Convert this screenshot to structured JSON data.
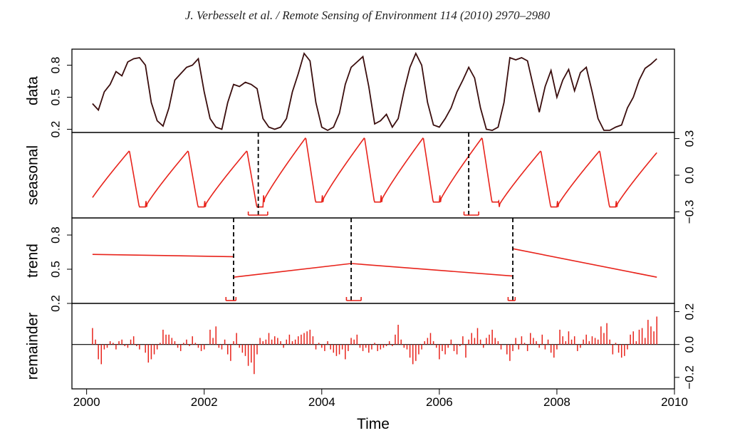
{
  "header": {
    "citation": "J. Verbesselt et al. / Remote Sensing of Environment 114 (2010) 2970–2980"
  },
  "chart_data": {
    "type": "line",
    "xlabel": "Time",
    "xlim": [
      1999.75,
      2010.0
    ],
    "x_ticks": [
      2000,
      2002,
      2004,
      2006,
      2008,
      2010
    ],
    "x_tick_labels": [
      "2000",
      "2002",
      "2004",
      "2006",
      "2008",
      "2010"
    ],
    "panels": [
      {
        "name": "data",
        "ylabel": "data",
        "axis_side": "left",
        "ylim": [
          0.17,
          0.95
        ],
        "y_ticks": [
          0.2,
          0.5,
          0.8
        ],
        "y_tick_labels": [
          "0.2",
          "0.5",
          "0.8"
        ],
        "line_color": "#3a0d0d",
        "series": {
          "x": [
            2000.1,
            2000.2,
            2000.3,
            2000.4,
            2000.5,
            2000.6,
            2000.7,
            2000.8,
            2000.9,
            2001.0,
            2001.1,
            2001.2,
            2001.3,
            2001.4,
            2001.5,
            2001.6,
            2001.7,
            2001.8,
            2001.9,
            2002.0,
            2002.1,
            2002.2,
            2002.3,
            2002.4,
            2002.5,
            2002.6,
            2002.7,
            2002.8,
            2002.9,
            2003.0,
            2003.1,
            2003.2,
            2003.3,
            2003.4,
            2003.5,
            2003.6,
            2003.7,
            2003.8,
            2003.9,
            2004.0,
            2004.1,
            2004.2,
            2004.3,
            2004.4,
            2004.5,
            2004.6,
            2004.7,
            2004.8,
            2004.9,
            2005.0,
            2005.1,
            2005.2,
            2005.3,
            2005.4,
            2005.5,
            2005.6,
            2005.7,
            2005.8,
            2005.9,
            2006.0,
            2006.1,
            2006.2,
            2006.3,
            2006.4,
            2006.5,
            2006.6,
            2006.7,
            2006.8,
            2006.9,
            2007.0,
            2007.1,
            2007.2,
            2007.3,
            2007.4,
            2007.5,
            2007.6,
            2007.7,
            2007.8,
            2007.9,
            2008.0,
            2008.1,
            2008.2,
            2008.3,
            2008.4,
            2008.5,
            2008.6,
            2008.7,
            2008.8,
            2008.9,
            2009.0,
            2009.1,
            2009.2,
            2009.3,
            2009.4,
            2009.5,
            2009.6,
            2009.7
          ],
          "y": [
            0.44,
            0.38,
            0.55,
            0.62,
            0.74,
            0.7,
            0.83,
            0.86,
            0.87,
            0.8,
            0.45,
            0.28,
            0.23,
            0.4,
            0.66,
            0.72,
            0.78,
            0.8,
            0.86,
            0.55,
            0.3,
            0.22,
            0.2,
            0.45,
            0.62,
            0.6,
            0.64,
            0.62,
            0.58,
            0.3,
            0.22,
            0.2,
            0.22,
            0.3,
            0.55,
            0.72,
            0.91,
            0.84,
            0.45,
            0.22,
            0.19,
            0.22,
            0.35,
            0.62,
            0.78,
            0.83,
            0.88,
            0.6,
            0.25,
            0.28,
            0.34,
            0.22,
            0.3,
            0.56,
            0.78,
            0.91,
            0.8,
            0.45,
            0.24,
            0.22,
            0.3,
            0.4,
            0.55,
            0.66,
            0.78,
            0.68,
            0.4,
            0.2,
            0.19,
            0.22,
            0.45,
            0.87,
            0.85,
            0.87,
            0.84,
            0.6,
            0.36,
            0.6,
            0.75,
            0.5,
            0.66,
            0.76,
            0.56,
            0.73,
            0.78,
            0.55,
            0.3,
            0.19,
            0.19,
            0.22,
            0.24,
            0.4,
            0.5,
            0.66,
            0.77,
            0.81,
            0.86
          ]
        }
      },
      {
        "name": "seasonal",
        "ylabel": "seasonal",
        "axis_side": "right",
        "ylim": [
          -0.35,
          0.35
        ],
        "y_ticks": [
          -0.3,
          0.0,
          0.3
        ],
        "y_tick_labels": [
          "−0.3",
          "0.0",
          "0.3"
        ],
        "line_color": "#e8231b",
        "breakpoints": [
          2002.92,
          2006.5
        ],
        "confidence_intervals": [
          [
            2002.75,
            2003.08
          ],
          [
            2006.42,
            2006.67
          ]
        ]
      },
      {
        "name": "trend",
        "ylabel": "trend",
        "axis_side": "left",
        "ylim": [
          0.2,
          0.95
        ],
        "y_ticks": [
          0.2,
          0.5,
          0.8
        ],
        "y_tick_labels": [
          "0.2",
          "0.5",
          "0.8"
        ],
        "line_color": "#e8231b",
        "breakpoints": [
          2002.5,
          2004.5,
          2007.25
        ],
        "confidence_intervals": [
          [
            2002.37,
            2002.54
          ],
          [
            2004.42,
            2004.67
          ],
          [
            2007.17,
            2007.29
          ]
        ],
        "segments": [
          {
            "x": [
              2000.1,
              2002.5
            ],
            "y": [
              0.63,
              0.61
            ]
          },
          {
            "x": [
              2002.5,
              2004.5
            ],
            "y": [
              0.43,
              0.55
            ]
          },
          {
            "x": [
              2004.5,
              2007.25
            ],
            "y": [
              0.55,
              0.44
            ]
          },
          {
            "x": [
              2007.25,
              2009.7
            ],
            "y": [
              0.68,
              0.43
            ]
          }
        ]
      },
      {
        "name": "remainder",
        "ylabel": "remainder",
        "axis_side": "right",
        "ylim": [
          -0.27,
          0.25
        ],
        "y_ticks": [
          -0.2,
          0.0,
          0.2
        ],
        "y_tick_labels": [
          "−0.2",
          "0.0",
          "0.2"
        ],
        "line_color": "#e8231b",
        "series": {
          "x": [
            2000.1,
            2000.15,
            2000.2,
            2000.25,
            2000.3,
            2000.35,
            2000.4,
            2000.45,
            2000.5,
            2000.55,
            2000.6,
            2000.65,
            2000.7,
            2000.75,
            2000.8,
            2000.85,
            2000.9,
            2000.95,
            2001.0,
            2001.05,
            2001.1,
            2001.15,
            2001.2,
            2001.25,
            2001.3,
            2001.35,
            2001.4,
            2001.45,
            2001.5,
            2001.55,
            2001.6,
            2001.65,
            2001.7,
            2001.75,
            2001.8,
            2001.85,
            2001.9,
            2001.95,
            2002.0,
            2002.05,
            2002.1,
            2002.15,
            2002.2,
            2002.25,
            2002.3,
            2002.35,
            2002.4,
            2002.45,
            2002.5,
            2002.55,
            2002.6,
            2002.65,
            2002.7,
            2002.75,
            2002.8,
            2002.85,
            2002.9,
            2002.95,
            2003.0,
            2003.05,
            2003.1,
            2003.15,
            2003.2,
            2003.25,
            2003.3,
            2003.35,
            2003.4,
            2003.45,
            2003.5,
            2003.55,
            2003.6,
            2003.65,
            2003.7,
            2003.75,
            2003.8,
            2003.85,
            2003.9,
            2003.95,
            2004.0,
            2004.05,
            2004.1,
            2004.15,
            2004.2,
            2004.25,
            2004.3,
            2004.35,
            2004.4,
            2004.45,
            2004.5,
            2004.55,
            2004.6,
            2004.65,
            2004.7,
            2004.75,
            2004.8,
            2004.85,
            2004.9,
            2004.95,
            2005.0,
            2005.05,
            2005.1,
            2005.15,
            2005.2,
            2005.25,
            2005.3,
            2005.35,
            2005.4,
            2005.45,
            2005.5,
            2005.55,
            2005.6,
            2005.65,
            2005.7,
            2005.75,
            2005.8,
            2005.85,
            2005.9,
            2005.95,
            2006.0,
            2006.05,
            2006.1,
            2006.15,
            2006.2,
            2006.25,
            2006.3,
            2006.35,
            2006.4,
            2006.45,
            2006.5,
            2006.55,
            2006.6,
            2006.65,
            2006.7,
            2006.75,
            2006.8,
            2006.85,
            2006.9,
            2006.95,
            2007.0,
            2007.05,
            2007.1,
            2007.15,
            2007.2,
            2007.25,
            2007.3,
            2007.35,
            2007.4,
            2007.45,
            2007.5,
            2007.55,
            2007.6,
            2007.65,
            2007.7,
            2007.75,
            2007.8,
            2007.85,
            2007.9,
            2007.95,
            2008.0,
            2008.05,
            2008.1,
            2008.15,
            2008.2,
            2008.25,
            2008.3,
            2008.35,
            2008.4,
            2008.45,
            2008.5,
            2008.55,
            2008.6,
            2008.65,
            2008.7,
            2008.75,
            2008.8,
            2008.85,
            2008.9,
            2008.95,
            2009.0,
            2009.05,
            2009.1,
            2009.15,
            2009.2,
            2009.25,
            2009.3,
            2009.35,
            2009.4,
            2009.45,
            2009.5,
            2009.55,
            2009.6,
            2009.65,
            2009.7
          ],
          "y": [
            0.1,
            0.03,
            -0.09,
            -0.12,
            -0.03,
            -0.02,
            0.02,
            0.01,
            -0.03,
            0.02,
            0.03,
            -0.01,
            -0.02,
            0.03,
            0.05,
            -0.01,
            -0.03,
            0.0,
            -0.05,
            -0.11,
            -0.09,
            -0.06,
            -0.03,
            0.01,
            0.09,
            0.06,
            0.06,
            0.04,
            0.02,
            -0.02,
            -0.04,
            0.01,
            0.03,
            -0.01,
            0.05,
            0.01,
            -0.02,
            -0.04,
            -0.03,
            0.0,
            0.09,
            0.04,
            0.11,
            -0.02,
            -0.03,
            0.03,
            -0.06,
            -0.1,
            0.02,
            0.07,
            -0.02,
            -0.05,
            -0.07,
            -0.13,
            -0.11,
            -0.18,
            -0.06,
            0.04,
            0.02,
            0.03,
            0.07,
            0.03,
            0.05,
            0.04,
            0.02,
            -0.02,
            0.03,
            0.06,
            0.02,
            0.03,
            0.05,
            0.06,
            0.07,
            0.08,
            0.09,
            0.05,
            -0.03,
            0.01,
            -0.02,
            -0.04,
            0.02,
            -0.03,
            -0.05,
            -0.07,
            -0.06,
            -0.03,
            -0.09,
            -0.04,
            0.04,
            0.03,
            0.06,
            -0.02,
            -0.04,
            -0.02,
            -0.05,
            -0.03,
            0.01,
            -0.04,
            -0.03,
            -0.02,
            -0.01,
            0.02,
            -0.01,
            0.06,
            0.12,
            0.03,
            -0.02,
            -0.03,
            -0.08,
            -0.12,
            -0.1,
            -0.06,
            -0.03,
            0.02,
            0.04,
            0.07,
            0.02,
            -0.02,
            -0.09,
            -0.04,
            -0.06,
            -0.02,
            0.03,
            -0.04,
            -0.06,
            -0.01,
            0.05,
            -0.08,
            0.03,
            0.07,
            0.04,
            0.1,
            0.03,
            -0.02,
            0.04,
            0.06,
            0.09,
            0.04,
            0.02,
            -0.03,
            0.0,
            -0.06,
            -0.1,
            -0.04,
            0.04,
            -0.03,
            0.05,
            0.01,
            -0.04,
            0.07,
            0.04,
            0.02,
            -0.02,
            0.06,
            -0.03,
            0.03,
            -0.05,
            -0.08,
            -0.03,
            0.09,
            0.05,
            0.02,
            0.08,
            0.03,
            0.05,
            -0.04,
            -0.02,
            0.03,
            0.06,
            0.02,
            0.05,
            0.04,
            0.03,
            0.11,
            0.07,
            0.13,
            0.03,
            -0.06,
            0.01,
            -0.05,
            -0.08,
            -0.07,
            -0.03,
            0.06,
            0.08,
            0.02,
            0.09,
            0.1,
            0.04,
            0.15,
            0.11,
            0.08,
            0.17
          ]
        }
      }
    ]
  }
}
